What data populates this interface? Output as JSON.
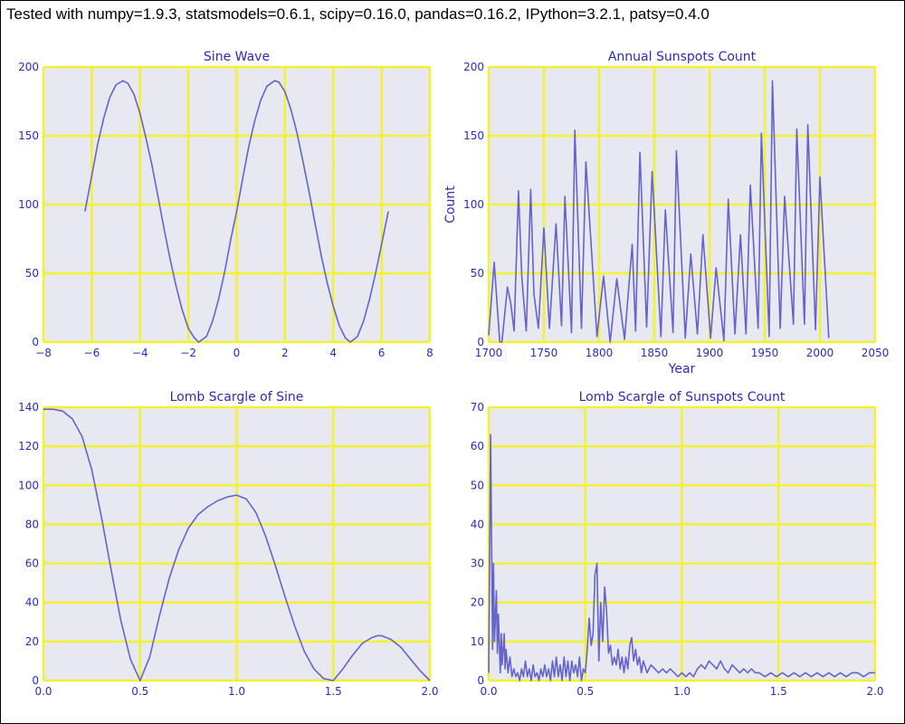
{
  "header_text": "Tested with numpy=1.9.3, statsmodels=0.6.1, scipy=0.16.0, pandas=0.16.2, IPython=3.2.1, patsy=0.4.0",
  "style": {
    "plot_bg": "#e8e8f0",
    "grid_color": "#f2f230",
    "line_color": "#6464cc",
    "text_color": "#2b2bb5"
  },
  "chart_data": [
    {
      "type": "line",
      "title": "Sine Wave",
      "xlabel": "",
      "ylabel": "",
      "xlim": [
        -8,
        8
      ],
      "ylim": [
        0,
        200
      ],
      "xticks": [
        -8,
        -6,
        -4,
        -2,
        0,
        2,
        4,
        6,
        8
      ],
      "xtick_labels": [
        "−8",
        "−6",
        "−4",
        "−2",
        "0",
        "2",
        "4",
        "6",
        "8"
      ],
      "yticks": [
        0,
        50,
        100,
        150,
        200
      ],
      "ytick_labels": [
        "0",
        "50",
        "100",
        "150",
        "200"
      ],
      "grid": true,
      "series": [
        {
          "x": [
            -6.28,
            -6,
            -5.75,
            -5.5,
            -5.25,
            -5,
            -4.71,
            -4.5,
            -4.25,
            -4,
            -3.75,
            -3.5,
            -3.25,
            -3,
            -2.75,
            -2.5,
            -2.25,
            -2,
            -1.75,
            -1.57,
            -1.25,
            -1,
            -0.75,
            -0.5,
            -0.25,
            0,
            0.25,
            0.5,
            0.75,
            1,
            1.25,
            1.57,
            1.75,
            2,
            2.25,
            2.5,
            2.75,
            3,
            3.25,
            3.5,
            3.75,
            4,
            4.25,
            4.5,
            4.71,
            5,
            5.25,
            5.5,
            5.75,
            6,
            6.28
          ],
          "y": [
            95,
            121,
            144,
            163,
            178,
            187,
            190,
            188,
            180,
            166,
            148,
            128,
            105,
            82,
            60,
            40,
            23,
            10,
            3,
            0,
            4,
            15,
            31,
            51,
            74,
            95,
            119,
            142,
            161,
            176,
            186,
            190,
            189,
            182,
            169,
            152,
            131,
            109,
            86,
            63,
            43,
            26,
            12,
            3,
            0,
            4,
            15,
            31,
            50,
            71,
            95
          ]
        }
      ]
    },
    {
      "type": "line",
      "title": "Annual Sunspots Count",
      "xlabel": "Year",
      "ylabel": "Count",
      "xlim": [
        1700,
        2050
      ],
      "ylim": [
        0,
        200
      ],
      "xticks": [
        1700,
        1750,
        1800,
        1850,
        1900,
        1950,
        2000,
        2050
      ],
      "xtick_labels": [
        "1700",
        "1750",
        "1800",
        "1850",
        "1900",
        "1950",
        "2000",
        "2050"
      ],
      "yticks": [
        0,
        50,
        100,
        150,
        200
      ],
      "ytick_labels": [
        "0",
        "50",
        "100",
        "150",
        "200"
      ],
      "grid": true,
      "series": [
        {
          "x": [
            1700,
            1705,
            1710,
            1712,
            1717,
            1720,
            1723,
            1727,
            1730,
            1734,
            1738,
            1741,
            1745,
            1750,
            1755,
            1761,
            1766,
            1769,
            1775,
            1778,
            1784,
            1788,
            1798,
            1804,
            1810,
            1816,
            1823,
            1830,
            1833,
            1837,
            1843,
            1848,
            1856,
            1860,
            1867,
            1870,
            1878,
            1883,
            1889,
            1894,
            1901,
            1906,
            1913,
            1917,
            1923,
            1928,
            1933,
            1937,
            1944,
            1947,
            1954,
            1957,
            1964,
            1968,
            1976,
            1979,
            1986,
            1989,
            1996,
            2000,
            2008
          ],
          "y": [
            5,
            58,
            0,
            0,
            40,
            28,
            8,
            110,
            47,
            8,
            111,
            35,
            10,
            83,
            10,
            86,
            12,
            106,
            7,
            154,
            10,
            131,
            4,
            48,
            0,
            46,
            2,
            71,
            8,
            138,
            11,
            124,
            4,
            96,
            7,
            139,
            3,
            64,
            6,
            78,
            3,
            54,
            1,
            104,
            6,
            78,
            6,
            114,
            10,
            152,
            4,
            190,
            10,
            106,
            13,
            155,
            13,
            158,
            9,
            120,
            3
          ]
        }
      ]
    },
    {
      "type": "line",
      "title": "Lomb Scargle of Sine",
      "xlabel": "",
      "ylabel": "",
      "xlim": [
        0,
        2
      ],
      "ylim": [
        0,
        140
      ],
      "xticks": [
        0,
        0.5,
        1,
        1.5,
        2
      ],
      "xtick_labels": [
        "0.0",
        "0.5",
        "1.0",
        "1.5",
        "2.0"
      ],
      "yticks": [
        0,
        20,
        40,
        60,
        80,
        100,
        120,
        140
      ],
      "ytick_labels": [
        "0",
        "20",
        "40",
        "60",
        "80",
        "100",
        "120",
        "140"
      ],
      "grid": true,
      "series": [
        {
          "x": [
            0,
            0.05,
            0.1,
            0.15,
            0.2,
            0.25,
            0.3,
            0.35,
            0.4,
            0.45,
            0.5,
            0.55,
            0.6,
            0.65,
            0.7,
            0.75,
            0.8,
            0.85,
            0.9,
            0.95,
            1.0,
            1.05,
            1.1,
            1.15,
            1.2,
            1.25,
            1.3,
            1.35,
            1.4,
            1.45,
            1.5,
            1.55,
            1.6,
            1.65,
            1.7,
            1.73,
            1.75,
            1.8,
            1.85,
            1.9,
            1.95,
            2.0
          ],
          "y": [
            139,
            139,
            138,
            134,
            125,
            108,
            84,
            57,
            31,
            11,
            0,
            12,
            33,
            52,
            67,
            78,
            85,
            89,
            92,
            94,
            95,
            93,
            86,
            74,
            59,
            43,
            28,
            15,
            6,
            1,
            0,
            6,
            13,
            19,
            22,
            23,
            23,
            21,
            17,
            11,
            5,
            0
          ]
        }
      ]
    },
    {
      "type": "line",
      "title": "Lomb Scargle of Sunspots Count",
      "xlabel": "",
      "ylabel": "",
      "xlim": [
        0,
        2
      ],
      "ylim": [
        0,
        70
      ],
      "xticks": [
        0,
        0.5,
        1,
        1.5,
        2
      ],
      "xtick_labels": [
        "0.0",
        "0.5",
        "1.0",
        "1.5",
        "2.0"
      ],
      "yticks": [
        0,
        10,
        20,
        30,
        40,
        50,
        60,
        70
      ],
      "ytick_labels": [
        "0",
        "10",
        "20",
        "30",
        "40",
        "50",
        "60",
        "70"
      ],
      "grid": true,
      "series": [
        {
          "x": [
            0,
            0.01,
            0.02,
            0.025,
            0.03,
            0.04,
            0.045,
            0.05,
            0.06,
            0.065,
            0.07,
            0.08,
            0.085,
            0.09,
            0.1,
            0.11,
            0.12,
            0.13,
            0.14,
            0.15,
            0.16,
            0.17,
            0.18,
            0.19,
            0.2,
            0.21,
            0.22,
            0.23,
            0.24,
            0.25,
            0.26,
            0.27,
            0.28,
            0.29,
            0.3,
            0.31,
            0.32,
            0.33,
            0.34,
            0.35,
            0.36,
            0.37,
            0.38,
            0.39,
            0.4,
            0.41,
            0.42,
            0.43,
            0.44,
            0.45,
            0.46,
            0.47,
            0.48,
            0.49,
            0.5,
            0.51,
            0.52,
            0.53,
            0.54,
            0.55,
            0.56,
            0.57,
            0.58,
            0.59,
            0.6,
            0.61,
            0.62,
            0.63,
            0.64,
            0.65,
            0.66,
            0.67,
            0.68,
            0.69,
            0.7,
            0.71,
            0.72,
            0.73,
            0.74,
            0.75,
            0.76,
            0.77,
            0.78,
            0.79,
            0.8,
            0.82,
            0.84,
            0.86,
            0.88,
            0.9,
            0.92,
            0.94,
            0.96,
            0.98,
            1.0,
            1.02,
            1.04,
            1.06,
            1.08,
            1.1,
            1.12,
            1.14,
            1.16,
            1.18,
            1.2,
            1.22,
            1.24,
            1.26,
            1.28,
            1.3,
            1.32,
            1.34,
            1.36,
            1.38,
            1.4,
            1.43,
            1.46,
            1.49,
            1.52,
            1.55,
            1.58,
            1.61,
            1.64,
            1.67,
            1.7,
            1.73,
            1.76,
            1.79,
            1.82,
            1.85,
            1.88,
            1.91,
            1.94,
            1.97,
            2.0
          ],
          "y": [
            2,
            63,
            8,
            30,
            10,
            23,
            7,
            17,
            2,
            12,
            4,
            12,
            3,
            8,
            2,
            6,
            1,
            3,
            1,
            2,
            0,
            3,
            1,
            5,
            1,
            3,
            0,
            4,
            1,
            2,
            0,
            3,
            1,
            4,
            1,
            3,
            0,
            5,
            1,
            6,
            1,
            4,
            0,
            6,
            1,
            5,
            0,
            5,
            2,
            4,
            1,
            6,
            0,
            3,
            2,
            8,
            16,
            9,
            12,
            27,
            30,
            5,
            20,
            10,
            24,
            18,
            7,
            9,
            4,
            6,
            4,
            8,
            3,
            6,
            2,
            6,
            3,
            9,
            11,
            5,
            8,
            4,
            6,
            2,
            5,
            2,
            4,
            3,
            2,
            3,
            2,
            3,
            2,
            1,
            2,
            1,
            2,
            1,
            3,
            4,
            3,
            5,
            4,
            3,
            5,
            3,
            2,
            4,
            3,
            2,
            3,
            2,
            3,
            2,
            2,
            1,
            2,
            1,
            2,
            1,
            2,
            1,
            2,
            1,
            2,
            1,
            2,
            1,
            2,
            1,
            2,
            2,
            1,
            2,
            2
          ]
        }
      ]
    }
  ]
}
